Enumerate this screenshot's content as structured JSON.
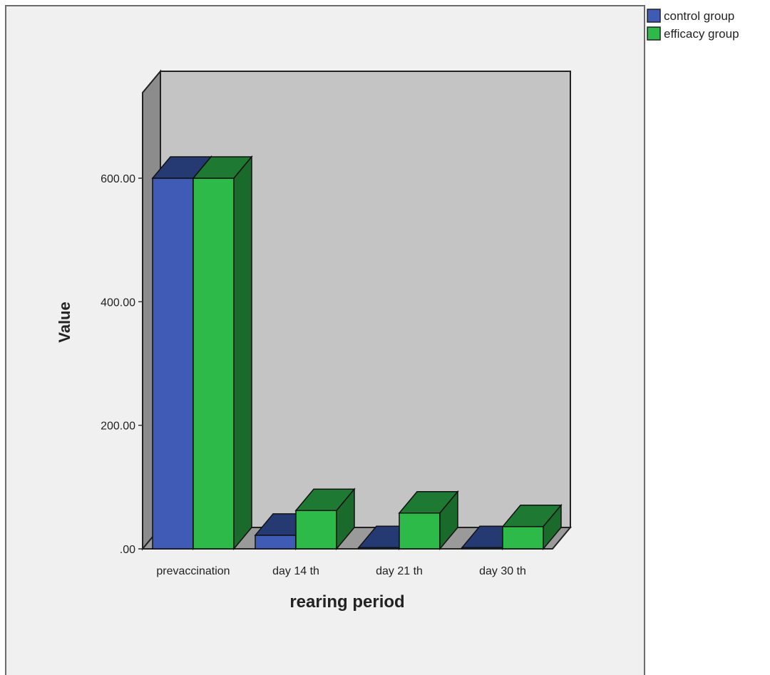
{
  "chart_data": {
    "type": "bar",
    "title": "",
    "xlabel": "rearing period",
    "ylabel": "Value",
    "categories": [
      "prevaccination",
      "day 14 th",
      "day 21 th",
      "day 30 th"
    ],
    "series": [
      {
        "name": "control group",
        "values": [
          600,
          22,
          2,
          2
        ]
      },
      {
        "name": "efficacy group",
        "values": [
          600,
          62,
          58,
          36
        ]
      }
    ],
    "ylim": [
      0,
      600
    ],
    "yticks": [
      0,
      200,
      400,
      600
    ],
    "ytick_labels": [
      ".00",
      "200.00",
      "400.00",
      "600.00"
    ],
    "grid": false,
    "legend_position": "top-right",
    "three_d": true
  },
  "colors": {
    "control_front": "#3f5bb5",
    "control_top": "#253a73",
    "control_side": "#1f3166",
    "efficacy_front": "#2dba48",
    "efficacy_top": "#1e7a32",
    "efficacy_side": "#1a6a2b",
    "back_wall": "#c4c4c4",
    "side_wall": "#8c8c8c",
    "floor": "#9a9a9a",
    "frame_bg": "#f0f0f0"
  }
}
